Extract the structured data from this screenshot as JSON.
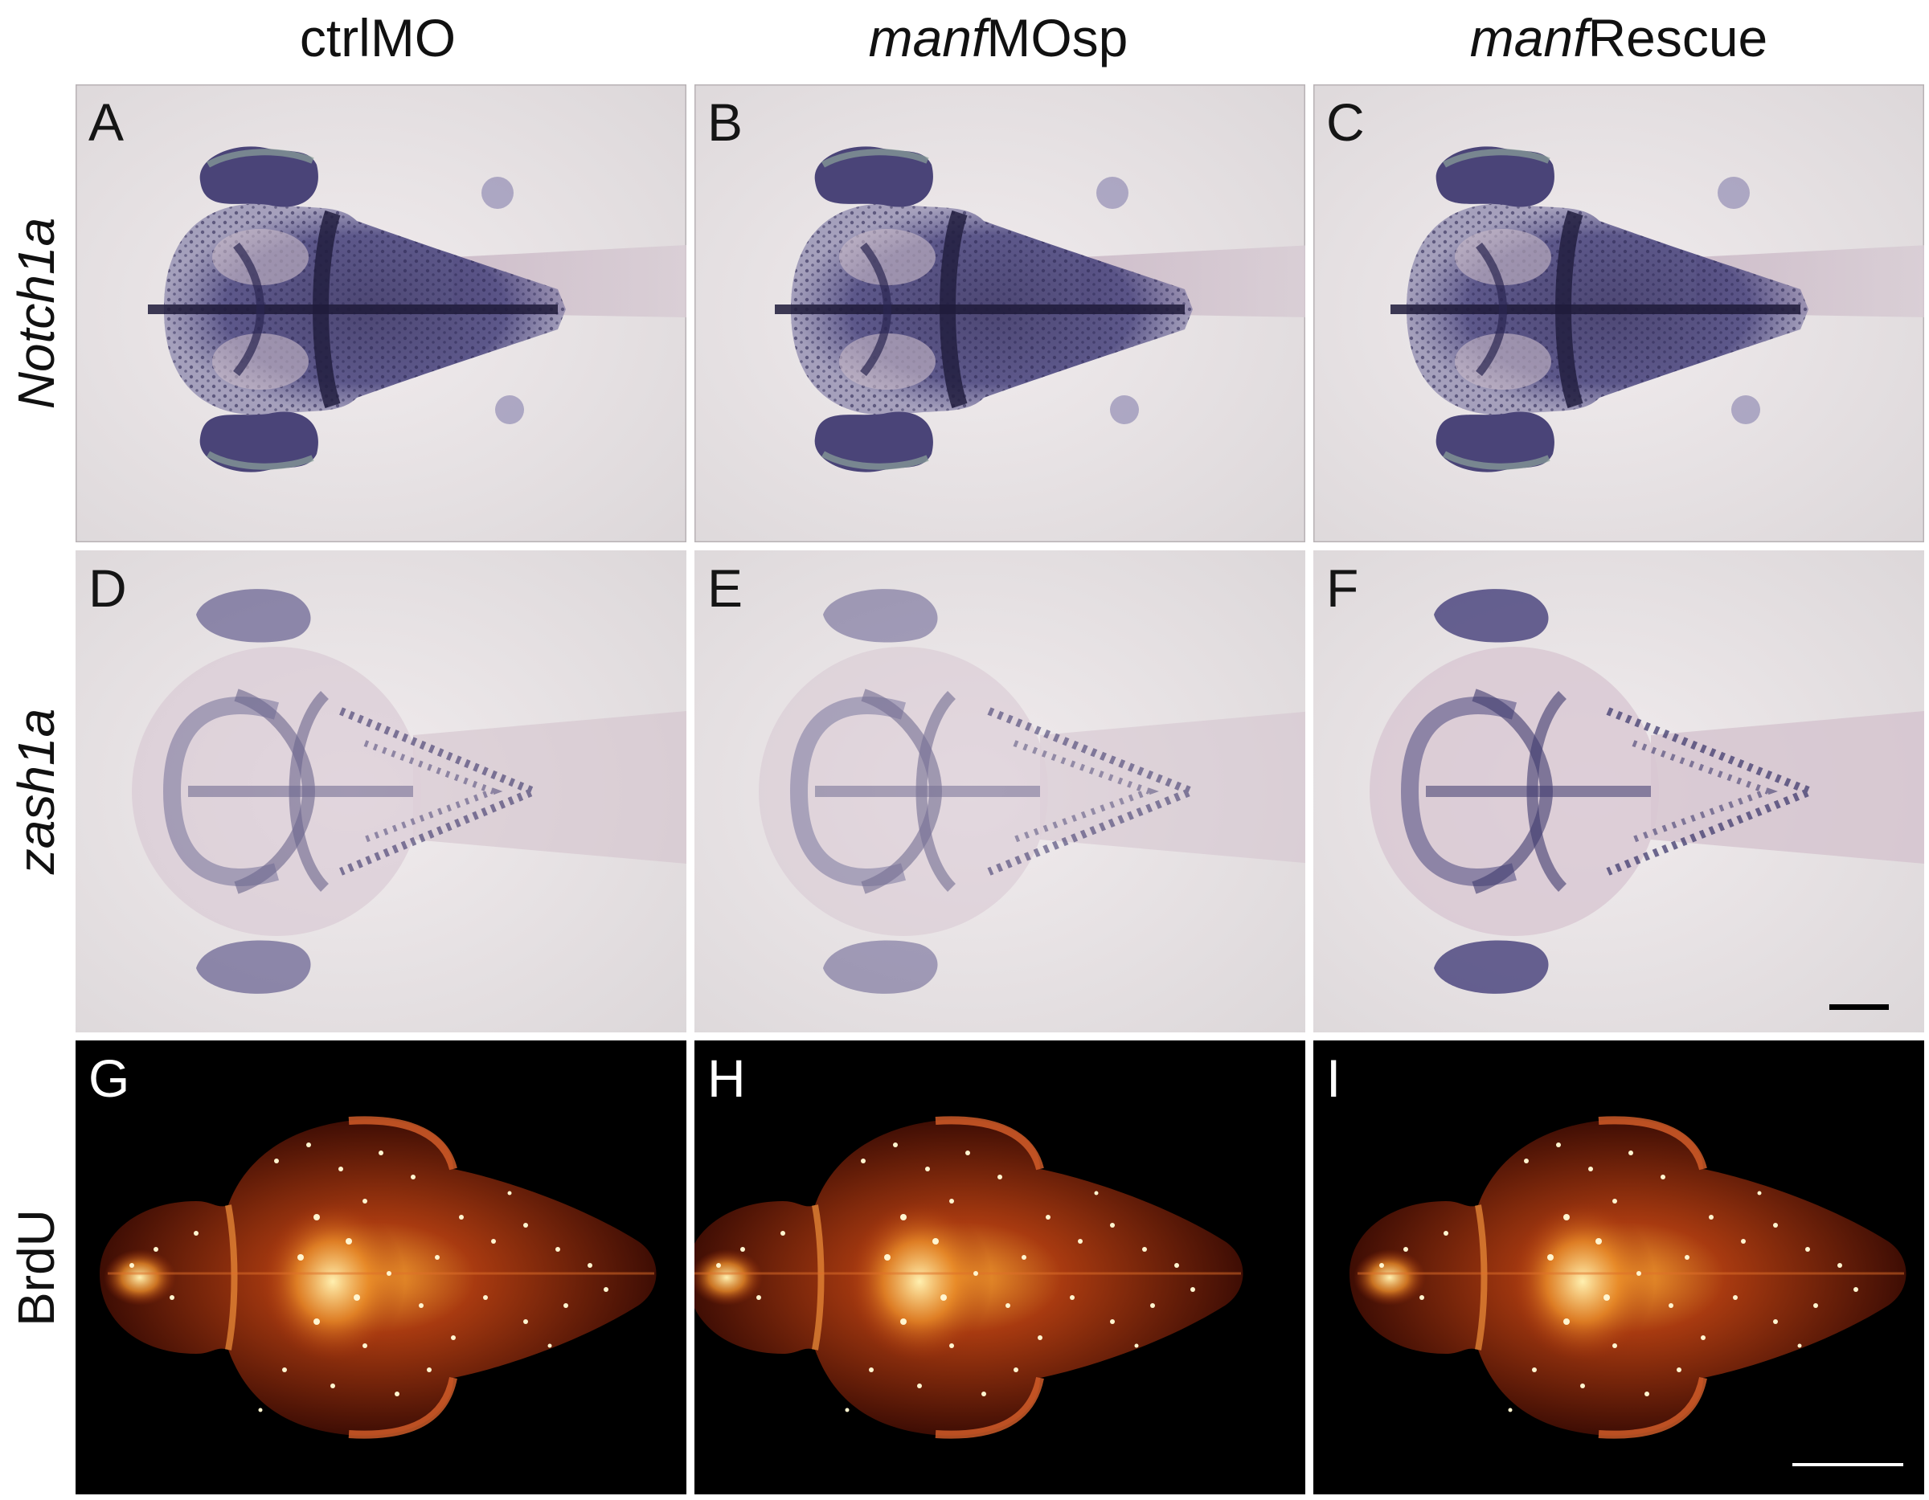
{
  "columns": [
    {
      "italic": "",
      "text": "ctrlMO"
    },
    {
      "italic": "manf",
      "text": " MOsp"
    },
    {
      "italic": "manf",
      "text": " Rescue"
    }
  ],
  "rows": [
    {
      "label": "Notch1a",
      "italic": true
    },
    {
      "label": "zash1a",
      "italic": true
    },
    {
      "label": "BrdU",
      "italic": false
    }
  ],
  "panels": [
    "A",
    "B",
    "C",
    "D",
    "E",
    "F",
    "G",
    "H",
    "I"
  ],
  "colors": {
    "ish_background": "#e9e4e6",
    "ish_stain": "#4a4478",
    "brdu_background": "#000000",
    "brdu_tissue": "#6b1a08",
    "brdu_signal": "#ffd27a"
  }
}
